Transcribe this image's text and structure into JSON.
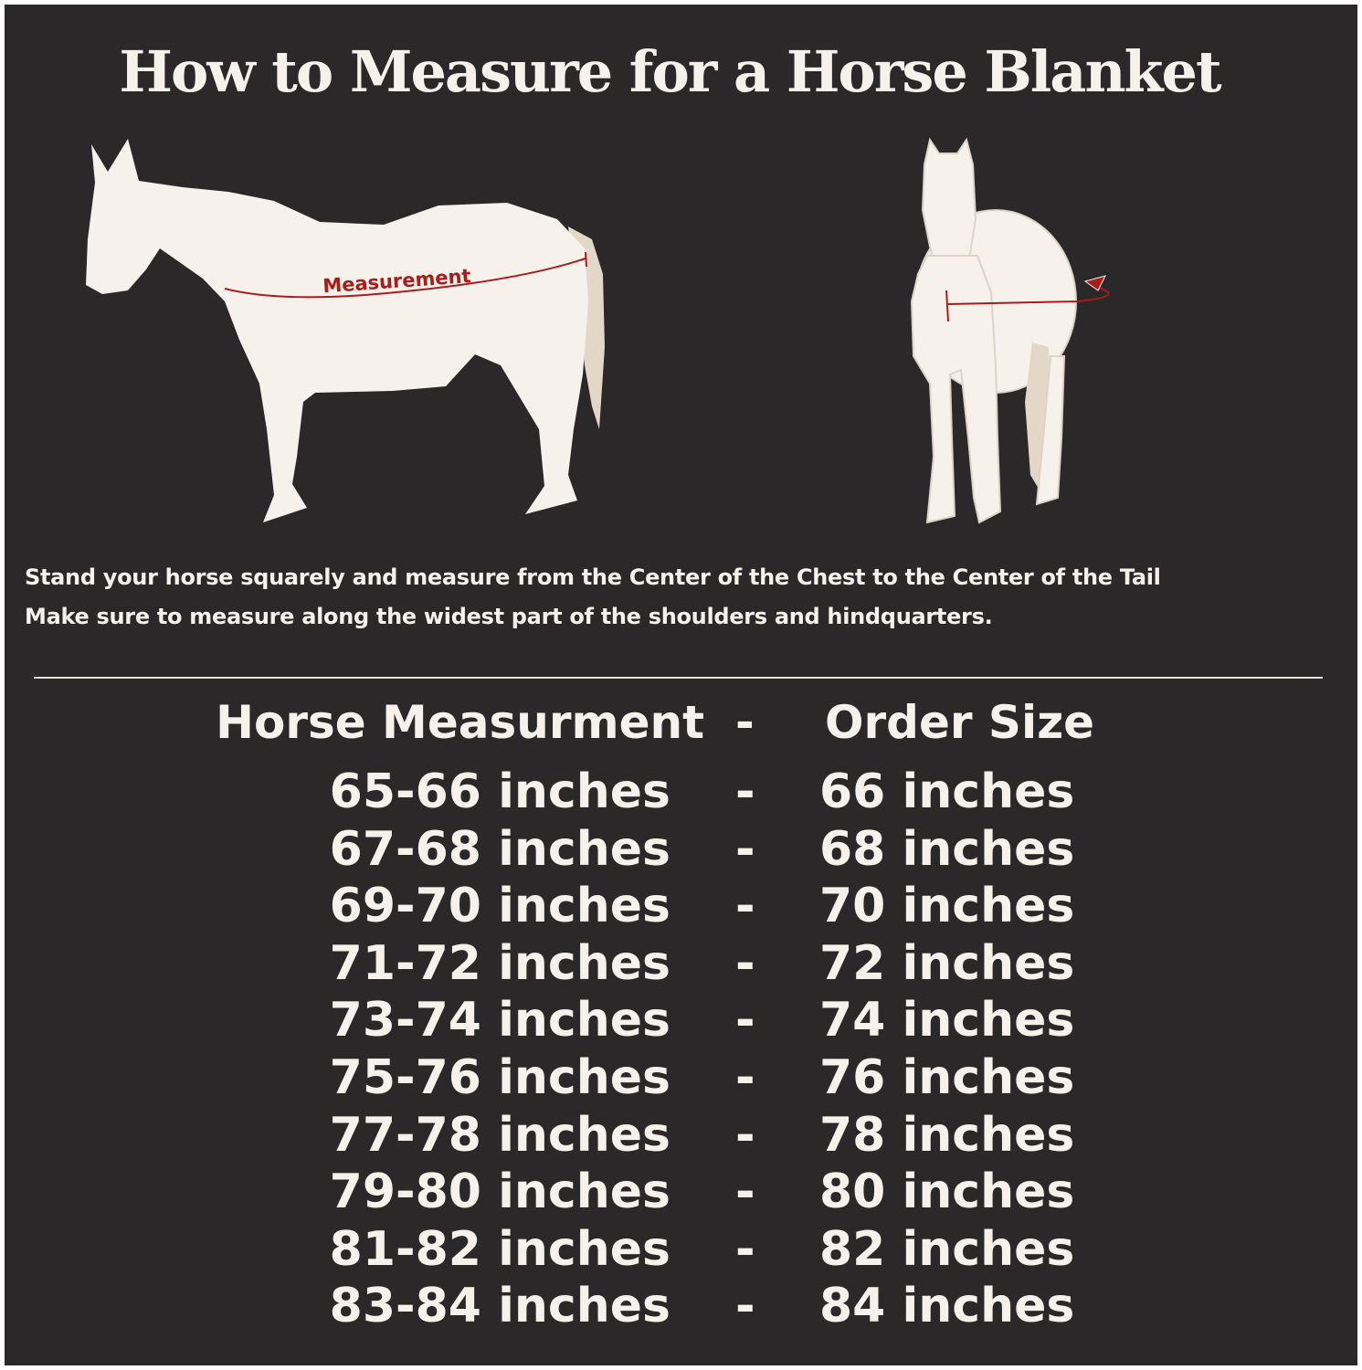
{
  "title": "How to Measure for a Horse Blanket",
  "diagram": {
    "side_label": "Measurement",
    "colors": {
      "background": "#2a2829",
      "horse": "#f6f1ea",
      "tail": "#e3d7c8",
      "measure_line": "#a81c1c"
    }
  },
  "instructions": [
    "Stand your horse squarely and measure from the Center of the Chest to the Center of the Tail",
    "Make sure to measure along the widest part of the shoulders and hindquarters."
  ],
  "table": {
    "headers": {
      "measurement": "Horse Measurment",
      "separator": "-",
      "size": "Order Size"
    },
    "rows": [
      {
        "measurement": "65-66 inches",
        "separator": "-",
        "size": "66 inches"
      },
      {
        "measurement": "67-68 inches",
        "separator": "-",
        "size": "68 inches"
      },
      {
        "measurement": "69-70 inches",
        "separator": "-",
        "size": "70 inches"
      },
      {
        "measurement": "71-72 inches",
        "separator": "-",
        "size": "72 inches"
      },
      {
        "measurement": "73-74 inches",
        "separator": "-",
        "size": "74 inches"
      },
      {
        "measurement": "75-76 inches",
        "separator": "-",
        "size": "76 inches"
      },
      {
        "measurement": "77-78 inches",
        "separator": "-",
        "size": "78 inches"
      },
      {
        "measurement": "79-80 inches",
        "separator": "-",
        "size": "80 inches"
      },
      {
        "measurement": "81-82 inches",
        "separator": "-",
        "size": "82 inches"
      },
      {
        "measurement": "83-84 inches",
        "separator": "-",
        "size": "84 inches"
      }
    ]
  }
}
